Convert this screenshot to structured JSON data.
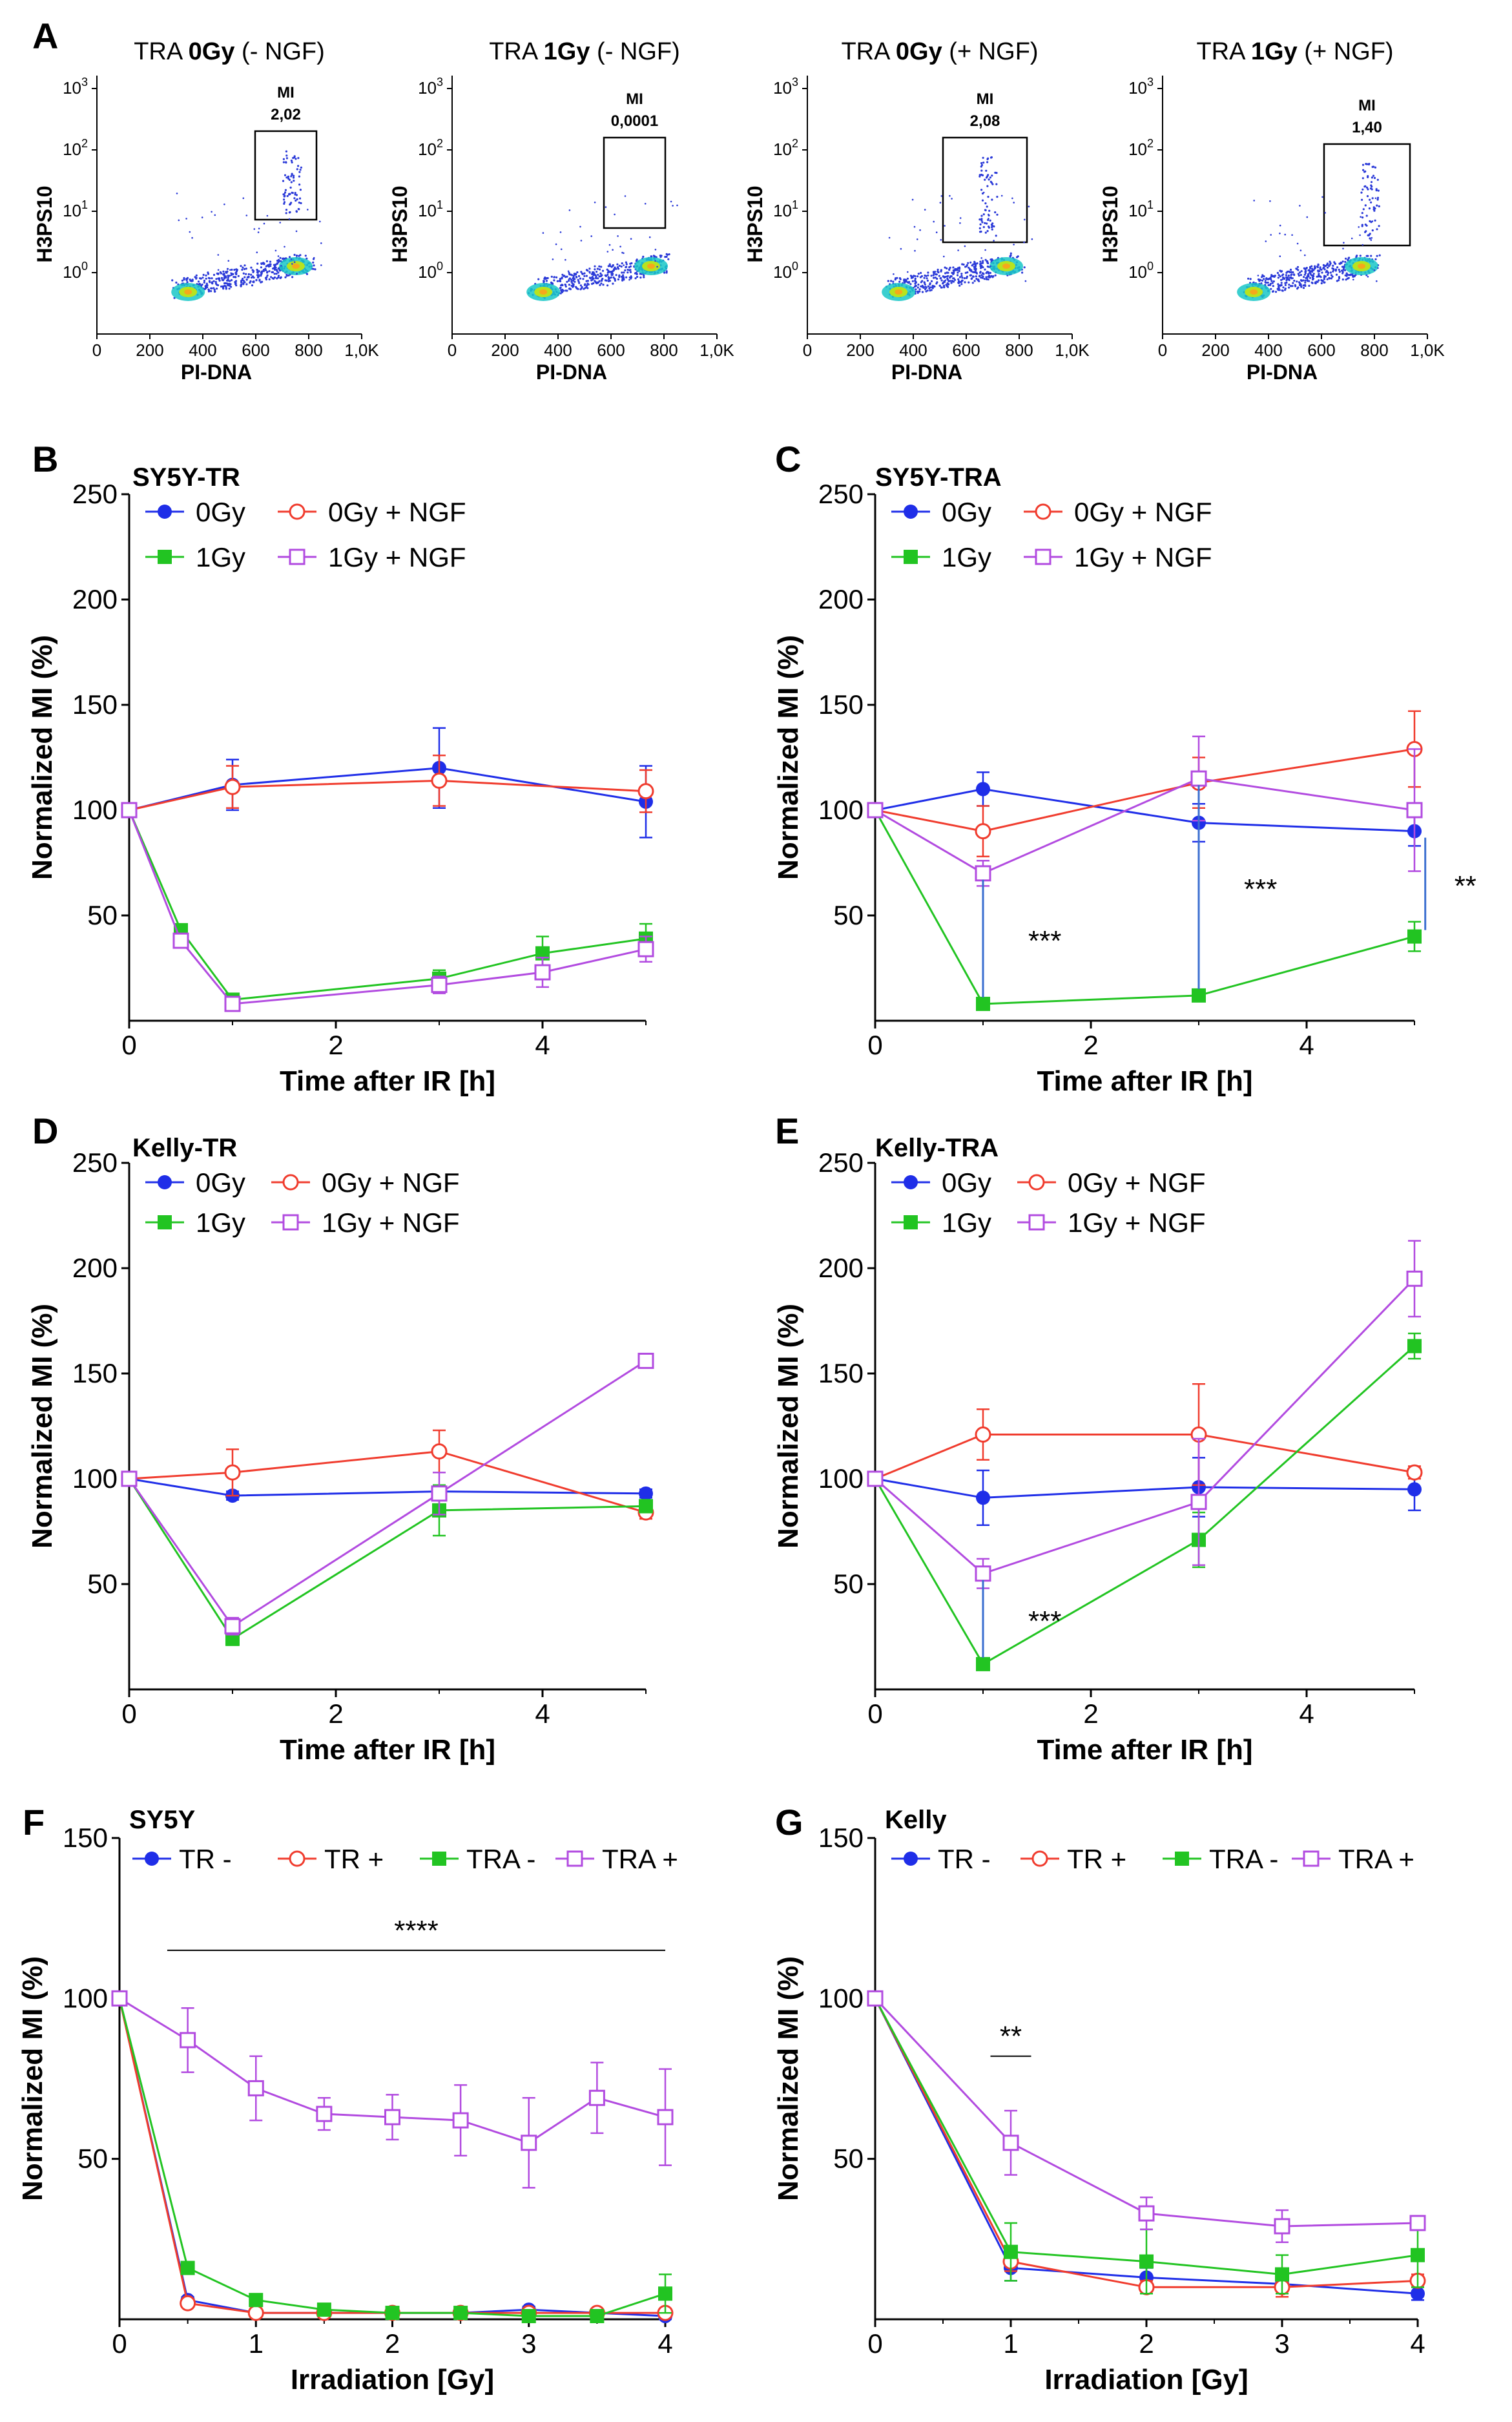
{
  "colors": {
    "0Gy": "#1f2ee8",
    "0Gy+NGF": "#f03c2e",
    "1Gy": "#22c422",
    "1Gy+NGF": "#b24be0",
    "sig_line": "#3b6fd0",
    "axis": "#000000"
  },
  "flow_panels": {
    "letter": "A",
    "xlabel": "PI-DNA",
    "ylabel": "H3PS10",
    "mi_label": "MI",
    "x_ticks": [
      "0",
      "200",
      "400",
      "600",
      "800",
      "1,0K"
    ],
    "y_ticks": [
      "10",
      "10",
      "10",
      "10"
    ],
    "y_exps": [
      "0",
      "1",
      "2",
      "3"
    ],
    "items": [
      {
        "pre": "TRA ",
        "dose": "0Gy",
        "post": " (- NGF)",
        "mi_value": "2,02"
      },
      {
        "pre": "TRA ",
        "dose": "1Gy",
        "post": " (- NGF)",
        "mi_value": "0,0001"
      },
      {
        "pre": "TRA ",
        "dose": "0Gy",
        "post": " (+ NGF)",
        "mi_value": "2,08"
      },
      {
        "pre": "TRA ",
        "dose": "1Gy",
        "post": " (+ NGF)",
        "mi_value": "1,40"
      }
    ]
  },
  "chart_data": [
    {
      "id": "B",
      "type": "line",
      "title": "SY5Y-TR",
      "xlabel": "Time after IR [h]",
      "ylabel": "Normalized MI (%)",
      "xlim": [
        0,
        5
      ],
      "ylim": [
        0,
        250
      ],
      "xticks": [
        0,
        2,
        4
      ],
      "yticks": [
        50,
        100,
        150,
        200,
        250
      ],
      "legend": [
        "0Gy",
        "0Gy + NGF",
        "1Gy",
        "1Gy + NGF"
      ],
      "series": [
        {
          "name": "0Gy",
          "marker": "circle-filled",
          "x": [
            0,
            1,
            3,
            5
          ],
          "values": [
            100,
            112,
            120,
            104
          ],
          "err": [
            0,
            12,
            19,
            17
          ]
        },
        {
          "name": "0Gy + NGF",
          "marker": "circle-open",
          "x": [
            0,
            1,
            3,
            5
          ],
          "values": [
            100,
            111,
            114,
            109
          ],
          "err": [
            0,
            10,
            12,
            10
          ]
        },
        {
          "name": "1Gy",
          "marker": "square-filled",
          "x": [
            0,
            0.5,
            1,
            3,
            4,
            5
          ],
          "values": [
            100,
            43,
            10,
            20,
            32,
            39
          ],
          "err": [
            0,
            2,
            2,
            4,
            8,
            7
          ]
        },
        {
          "name": "1Gy + NGF",
          "marker": "square-open",
          "x": [
            0,
            0.5,
            1,
            3,
            4,
            5
          ],
          "values": [
            100,
            38,
            8,
            17,
            23,
            34
          ],
          "err": [
            0,
            2,
            2,
            4,
            7,
            6
          ]
        }
      ],
      "annotations": []
    },
    {
      "id": "C",
      "type": "line",
      "title": "SY5Y-TRA",
      "xlabel": "Time after IR [h]",
      "ylabel": "Normalized MI (%)",
      "xlim": [
        0,
        5
      ],
      "ylim": [
        0,
        250
      ],
      "xticks": [
        0,
        2,
        4
      ],
      "yticks": [
        50,
        100,
        150,
        200,
        250
      ],
      "legend": [
        "0Gy",
        "0Gy + NGF",
        "1Gy",
        "1Gy + NGF"
      ],
      "series": [
        {
          "name": "0Gy",
          "marker": "circle-filled",
          "x": [
            0,
            1,
            3,
            5
          ],
          "values": [
            100,
            110,
            94,
            90
          ],
          "err": [
            0,
            8,
            9,
            7
          ]
        },
        {
          "name": "0Gy + NGF",
          "marker": "circle-open",
          "x": [
            0,
            1,
            3,
            5
          ],
          "values": [
            100,
            90,
            113,
            129
          ],
          "err": [
            0,
            12,
            12,
            18
          ]
        },
        {
          "name": "1Gy",
          "marker": "square-filled",
          "x": [
            0,
            1,
            3,
            5
          ],
          "values": [
            100,
            8,
            12,
            40
          ],
          "err": [
            0,
            1,
            1,
            7
          ]
        },
        {
          "name": "1Gy + NGF",
          "marker": "square-open",
          "x": [
            0,
            1,
            3,
            5
          ],
          "values": [
            100,
            70,
            115,
            100
          ],
          "err": [
            0,
            6,
            20,
            29
          ]
        }
      ],
      "annotations": [
        {
          "text": "***",
          "x": 1,
          "y1": 8,
          "y2": 70
        },
        {
          "text": "***",
          "x": 3,
          "y1": 12,
          "y2": 115
        },
        {
          "text": "**",
          "x": 5.1,
          "y1": 40,
          "y2": 90
        }
      ]
    },
    {
      "id": "D",
      "type": "line",
      "title": "Kelly-TR",
      "xlabel": "Time after IR [h]",
      "ylabel": "Normalized MI (%)",
      "xlim": [
        0,
        5
      ],
      "ylim": [
        0,
        250
      ],
      "xticks": [
        0,
        2,
        4
      ],
      "yticks": [
        50,
        100,
        150,
        200,
        250
      ],
      "legend": [
        "0Gy",
        "0Gy + NGF",
        "1Gy",
        "1Gy + NGF"
      ],
      "series": [
        {
          "name": "0Gy",
          "marker": "circle-filled",
          "x": [
            0,
            1,
            3,
            5
          ],
          "values": [
            100,
            92,
            94,
            93
          ],
          "err": [
            0,
            2,
            3,
            2
          ]
        },
        {
          "name": "0Gy + NGF",
          "marker": "circle-open",
          "x": [
            0,
            1,
            3,
            5
          ],
          "values": [
            100,
            103,
            113,
            84
          ],
          "err": [
            0,
            11,
            10,
            3
          ]
        },
        {
          "name": "1Gy",
          "marker": "square-filled",
          "x": [
            0,
            1,
            3,
            5
          ],
          "values": [
            100,
            24,
            85,
            87
          ],
          "err": [
            0,
            3,
            12,
            3
          ]
        },
        {
          "name": "1Gy + NGF",
          "marker": "square-open",
          "x": [
            0,
            1,
            3,
            5
          ],
          "values": [
            100,
            30,
            93,
            156
          ],
          "err": [
            0,
            4,
            10,
            3
          ]
        }
      ],
      "annotations": []
    },
    {
      "id": "E",
      "type": "line",
      "title": "Kelly-TRA",
      "xlabel": "Time after IR [h]",
      "ylabel": "Normalized MI (%)",
      "xlim": [
        0,
        5
      ],
      "ylim": [
        0,
        250
      ],
      "xticks": [
        0,
        2,
        4
      ],
      "yticks": [
        50,
        100,
        150,
        200,
        250
      ],
      "legend": [
        "0Gy",
        "0Gy + NGF",
        "1Gy",
        "1Gy + NGF"
      ],
      "series": [
        {
          "name": "0Gy",
          "marker": "circle-filled",
          "x": [
            0,
            1,
            3,
            5
          ],
          "values": [
            100,
            91,
            96,
            95
          ],
          "err": [
            0,
            13,
            14,
            10
          ]
        },
        {
          "name": "0Gy + NGF",
          "marker": "circle-open",
          "x": [
            0,
            1,
            3,
            5
          ],
          "values": [
            100,
            121,
            121,
            103
          ],
          "err": [
            0,
            12,
            24,
            3
          ]
        },
        {
          "name": "1Gy",
          "marker": "square-filled",
          "x": [
            0,
            1,
            3,
            5
          ],
          "values": [
            100,
            12,
            71,
            163
          ],
          "err": [
            0,
            2,
            13,
            6
          ]
        },
        {
          "name": "1Gy + NGF",
          "marker": "square-open",
          "x": [
            0,
            1,
            3,
            5
          ],
          "values": [
            100,
            55,
            89,
            195
          ],
          "err": [
            0,
            7,
            30,
            18
          ]
        }
      ],
      "annotations": [
        {
          "text": "***",
          "x": 1,
          "y1": 12,
          "y2": 55
        }
      ]
    },
    {
      "id": "F",
      "type": "line",
      "title": "SY5Y",
      "xlabel": "Irradiation [Gy]",
      "ylabel": "Normalized MI (%)",
      "xlim": [
        0,
        4
      ],
      "ylim": [
        0,
        150
      ],
      "xticks": [
        0,
        1,
        2,
        3,
        4
      ],
      "yticks": [
        50,
        100,
        150
      ],
      "legend": [
        "TR -",
        "TR +",
        "TRA -",
        "TRA +"
      ],
      "series": [
        {
          "name": "TR -",
          "marker": "circle-filled",
          "x": [
            0,
            0.5,
            1,
            1.5,
            2,
            2.5,
            3,
            3.5,
            4
          ],
          "values": [
            100,
            6,
            2,
            2,
            2,
            2,
            3,
            2,
            1
          ],
          "err": [
            0,
            1,
            1,
            1,
            1,
            1,
            1,
            1,
            1
          ]
        },
        {
          "name": "TR +",
          "marker": "circle-open",
          "x": [
            0,
            0.5,
            1,
            1.5,
            2,
            2.5,
            3,
            3.5,
            4
          ],
          "values": [
            100,
            5,
            2,
            2,
            2,
            2,
            2,
            2,
            2
          ],
          "err": [
            0,
            1,
            1,
            1,
            1,
            1,
            1,
            1,
            1
          ]
        },
        {
          "name": "TRA -",
          "marker": "square-filled",
          "x": [
            0,
            0.5,
            1,
            1.5,
            2,
            2.5,
            3,
            3.5,
            4
          ],
          "values": [
            100,
            16,
            6,
            3,
            2,
            2,
            1,
            1,
            8
          ],
          "err": [
            0,
            1,
            1,
            1,
            1,
            1,
            1,
            1,
            6
          ]
        },
        {
          "name": "TRA +",
          "marker": "square-open",
          "x": [
            0,
            0.5,
            1,
            1.5,
            2,
            2.5,
            3,
            3.5,
            4
          ],
          "values": [
            100,
            87,
            72,
            64,
            63,
            62,
            55,
            69,
            63
          ],
          "err": [
            0,
            10,
            10,
            5,
            7,
            11,
            14,
            11,
            15
          ]
        }
      ],
      "annotations": [
        {
          "text": "****",
          "x1": 0.35,
          "x2": 4,
          "y": 115
        }
      ]
    },
    {
      "id": "G",
      "type": "line",
      "title": "Kelly",
      "xlabel": "Irradiation [Gy]",
      "ylabel": "Normalized MI (%)",
      "xlim": [
        0,
        4
      ],
      "ylim": [
        0,
        150
      ],
      "xticks": [
        0,
        1,
        2,
        3,
        4
      ],
      "yticks": [
        50,
        100,
        150
      ],
      "legend": [
        "TR -",
        "TR +",
        "TRA -",
        "TRA +"
      ],
      "series": [
        {
          "name": "TR -",
          "marker": "circle-filled",
          "x": [
            0,
            1,
            2,
            3,
            4
          ],
          "values": [
            100,
            16,
            13,
            11,
            8
          ],
          "err": [
            0,
            4,
            3,
            3,
            2
          ]
        },
        {
          "name": "TR +",
          "marker": "circle-open",
          "x": [
            0,
            1,
            2,
            3,
            4
          ],
          "values": [
            100,
            18,
            10,
            10,
            12
          ],
          "err": [
            0,
            3,
            2,
            3,
            2
          ]
        },
        {
          "name": "TRA -",
          "marker": "square-filled",
          "x": [
            0,
            1,
            2,
            3,
            4
          ],
          "values": [
            100,
            21,
            18,
            14,
            20
          ],
          "err": [
            0,
            9,
            10,
            6,
            10
          ]
        },
        {
          "name": "TRA +",
          "marker": "square-open",
          "x": [
            0,
            1,
            2,
            3,
            4
          ],
          "values": [
            100,
            55,
            33,
            29,
            30
          ],
          "err": [
            0,
            10,
            5,
            5,
            2
          ]
        }
      ],
      "annotations": [
        {
          "text": "**",
          "x1": 0.85,
          "x2": 1.15,
          "y": 82
        }
      ]
    }
  ]
}
